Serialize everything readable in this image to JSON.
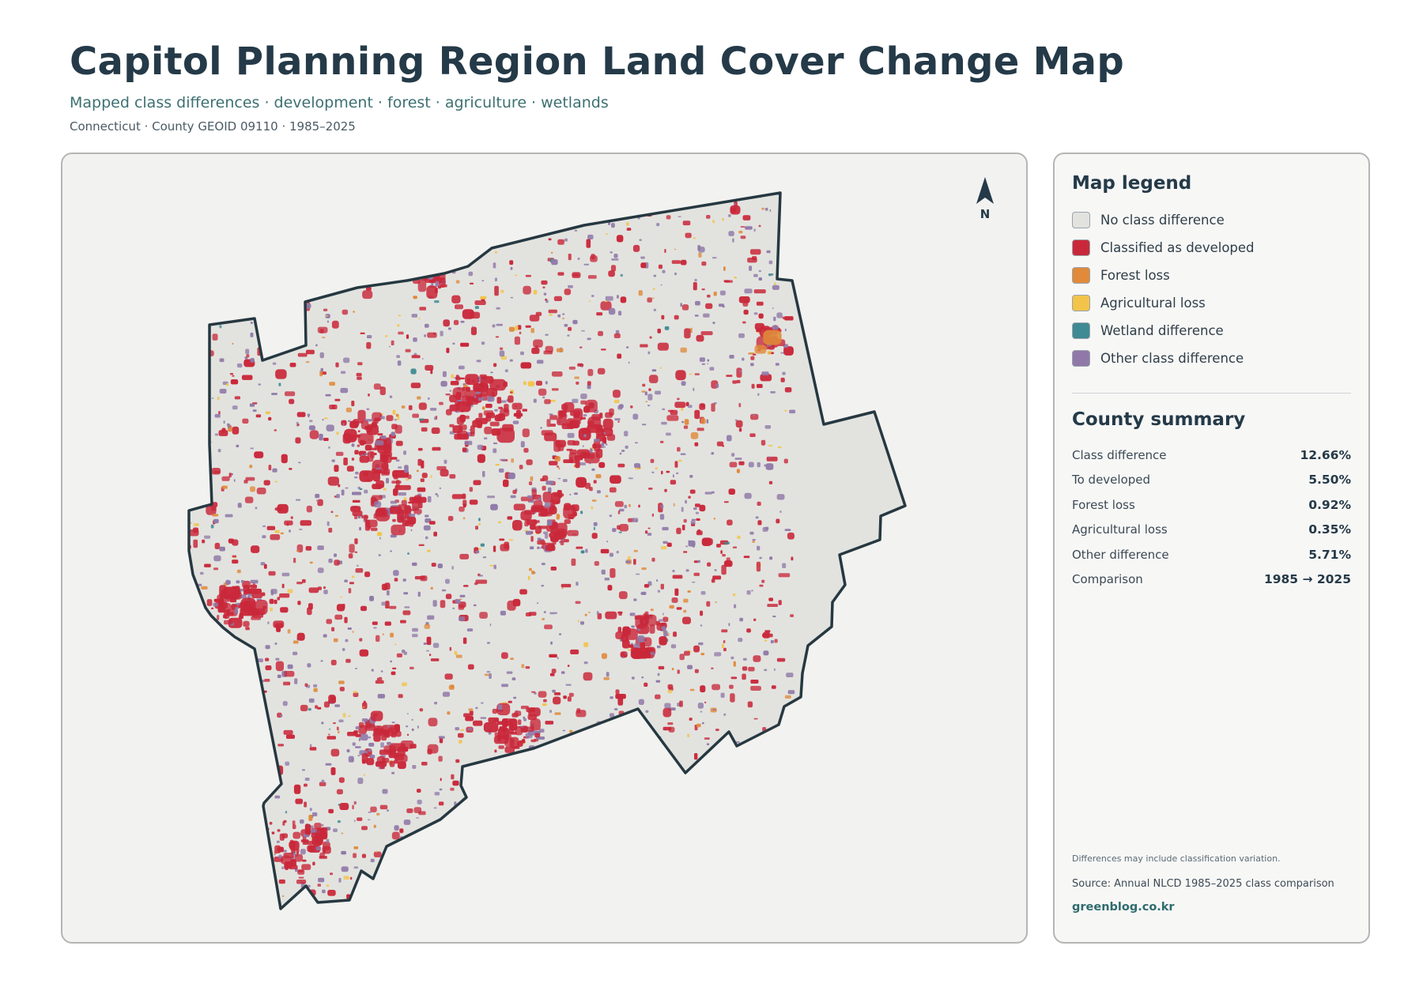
{
  "header": {
    "title": "Capitol Planning Region Land Cover Change Map",
    "subtitle": "Mapped class differences · development · forest · agriculture · wetlands",
    "meta": "Connecticut · County GEOID 09110 · 1985–2025"
  },
  "map": {
    "north_label": "N",
    "colors": {
      "background": "#f2f2f0",
      "region_fill": "#e2e3df",
      "outline": "#263841"
    }
  },
  "legend": {
    "heading": "Map legend",
    "items": [
      {
        "label": "No class difference",
        "color": "#e2e3df"
      },
      {
        "label": "Classified as developed",
        "color": "#c9283a"
      },
      {
        "label": "Forest loss",
        "color": "#e08a3a"
      },
      {
        "label": "Agricultural loss",
        "color": "#f2c44a"
      },
      {
        "label": "Wetland difference",
        "color": "#3f8a93"
      },
      {
        "label": "Other class difference",
        "color": "#9079a8"
      }
    ]
  },
  "summary": {
    "heading": "County summary",
    "rows": [
      {
        "label": "Class difference",
        "value": "12.66%"
      },
      {
        "label": "To developed",
        "value": "5.50%"
      },
      {
        "label": "Forest loss",
        "value": "0.92%"
      },
      {
        "label": "Agricultural loss",
        "value": "0.35%"
      },
      {
        "label": "Other difference",
        "value": "5.71%"
      },
      {
        "label": "Comparison",
        "value": "1985 → 2025"
      }
    ]
  },
  "notes": {
    "caveat": "Differences may include classification variation.",
    "source": "Source: Annual NLCD 1985–2025 class comparison",
    "brand": "greenblog.co.kr"
  }
}
